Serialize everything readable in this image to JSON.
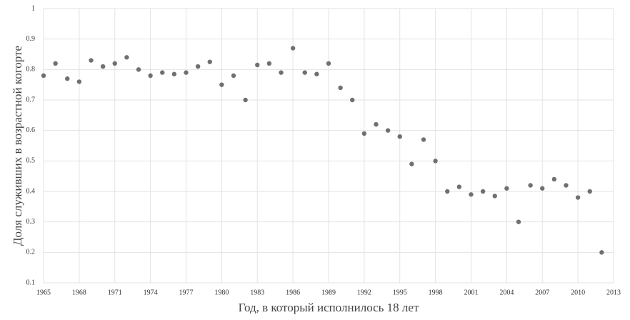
{
  "chart_data": {
    "type": "scatter",
    "x_label": "Год, в который исполнилось 18 лет",
    "y_label": "Доля служивших в возрастной когорте",
    "x": [
      1965,
      1966,
      1967,
      1968,
      1969,
      1970,
      1971,
      1972,
      1973,
      1974,
      1975,
      1976,
      1977,
      1978,
      1979,
      1980,
      1981,
      1982,
      1983,
      1984,
      1985,
      1986,
      1987,
      1988,
      1989,
      1990,
      1991,
      1992,
      1993,
      1994,
      1995,
      1996,
      1997,
      1998,
      1999,
      2000,
      2001,
      2002,
      2003,
      2004,
      2005,
      2006,
      2007,
      2008,
      2009,
      2010,
      2011,
      2012
    ],
    "values": [
      0.78,
      0.82,
      0.77,
      0.76,
      0.83,
      0.81,
      0.82,
      0.84,
      0.8,
      0.78,
      0.79,
      0.785,
      0.79,
      0.81,
      0.825,
      0.75,
      0.78,
      0.7,
      0.815,
      0.82,
      0.79,
      0.87,
      0.79,
      0.785,
      0.82,
      0.74,
      0.7,
      0.59,
      0.62,
      0.6,
      0.58,
      0.49,
      0.57,
      0.5,
      0.4,
      0.415,
      0.39,
      0.4,
      0.385,
      0.41,
      0.3,
      0.42,
      0.41,
      0.44,
      0.42,
      0.38,
      0.4,
      0.2
    ],
    "color": "#707070",
    "xlim": [
      1965,
      2013
    ],
    "xticks": [
      1965,
      1968,
      1971,
      1974,
      1977,
      1980,
      1983,
      1986,
      1989,
      1992,
      1995,
      1998,
      2001,
      2004,
      2007,
      2010,
      2013
    ],
    "ylim": [
      0.1,
      1
    ],
    "yticks": [
      0.1,
      0.2,
      0.3,
      0.4,
      0.5,
      0.6,
      0.7,
      0.8,
      0.9,
      1
    ],
    "grid": true
  }
}
